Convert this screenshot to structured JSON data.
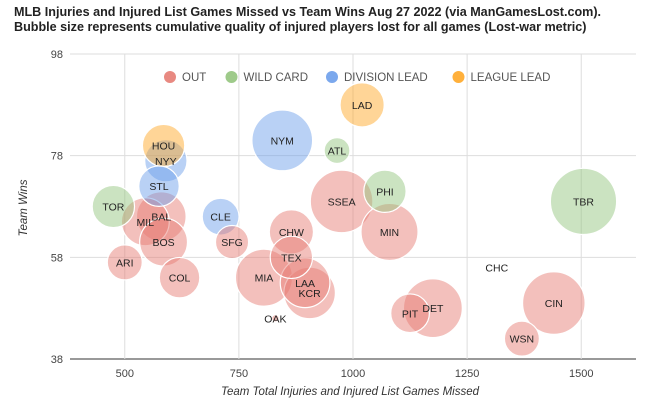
{
  "chart_data": {
    "type": "scatter",
    "title": "MLB Injuries and Injured List Games Missed vs Team Wins Aug 27 2022 (via ManGamesLost.com). Bubble size represents cumulative quality of injured players lost for all games (Lost-war metric)",
    "xlabel": "Team Total Injuries and Injured List Games Missed",
    "ylabel": "Team Wins",
    "xlim": [
      380,
      1620
    ],
    "ylim": [
      38,
      98
    ],
    "xticks": [
      500,
      750,
      1000,
      1250,
      1500
    ],
    "yticks": [
      38,
      58,
      78,
      98
    ],
    "grid": true,
    "legend": {
      "position": "top"
    },
    "size_scale": "bubble radius proportional to Lost-war (relative size)",
    "series": [
      {
        "name": "OUT",
        "color": "#e67c73",
        "points": [
          {
            "label": "MIL",
            "x": 545,
            "y": 65,
            "size": 2.6
          },
          {
            "label": "BAL",
            "x": 580,
            "y": 66,
            "size": 2.7
          },
          {
            "label": "BOS",
            "x": 585,
            "y": 61,
            "size": 2.6
          },
          {
            "label": "ARI",
            "x": 500,
            "y": 57,
            "size": 1.9
          },
          {
            "label": "COL",
            "x": 620,
            "y": 54,
            "size": 2.2
          },
          {
            "label": "SFG",
            "x": 735,
            "y": 61,
            "size": 1.8
          },
          {
            "label": "MIA",
            "x": 805,
            "y": 54,
            "size": 3.1
          },
          {
            "label": "OAK",
            "x": 830,
            "y": 46,
            "size": 0.4
          },
          {
            "label": "CHW",
            "x": 865,
            "y": 63,
            "size": 2.4
          },
          {
            "label": "TEX",
            "x": 865,
            "y": 58,
            "size": 2.3
          },
          {
            "label": "LAA",
            "x": 895,
            "y": 53,
            "size": 2.7
          },
          {
            "label": "KCR",
            "x": 905,
            "y": 51,
            "size": 2.8
          },
          {
            "label": "SSEA",
            "x": 975,
            "y": 69,
            "size": 3.4
          },
          {
            "label": "MIN",
            "x": 1080,
            "y": 63,
            "size": 3.1
          },
          {
            "label": "PIT",
            "x": 1125,
            "y": 47,
            "size": 2.1
          },
          {
            "label": "DET",
            "x": 1175,
            "y": 48,
            "size": 3.2
          },
          {
            "label": "CHC",
            "x": 1315,
            "y": 56,
            "size": 0.0
          },
          {
            "label": "CIN",
            "x": 1440,
            "y": 49,
            "size": 3.4
          },
          {
            "label": "WSN",
            "x": 1370,
            "y": 42,
            "size": 1.9
          }
        ]
      },
      {
        "name": "WILD CARD",
        "color": "#93c47d",
        "points": [
          {
            "label": "TOR",
            "x": 475,
            "y": 68,
            "size": 2.3
          },
          {
            "label": "ATL",
            "x": 965,
            "y": 79,
            "size": 1.4
          },
          {
            "label": "PHI",
            "x": 1070,
            "y": 71,
            "size": 2.3
          },
          {
            "label": "TBR",
            "x": 1505,
            "y": 69,
            "size": 3.6
          }
        ]
      },
      {
        "name": "DIVISION LEAD",
        "color": "#6d9eeb",
        "points": [
          {
            "label": "NYY",
            "x": 590,
            "y": 77,
            "size": 2.3
          },
          {
            "label": "STL",
            "x": 575,
            "y": 72,
            "size": 2.2
          },
          {
            "label": "CLE",
            "x": 710,
            "y": 66,
            "size": 2.0
          },
          {
            "label": "NYM",
            "x": 845,
            "y": 81,
            "size": 3.3
          }
        ]
      },
      {
        "name": "LEAGUE LEAD",
        "color": "#ffa726",
        "points": [
          {
            "label": "LAD",
            "x": 1020,
            "y": 88,
            "size": 2.4
          },
          {
            "label": "HOU",
            "x": 585,
            "y": 80,
            "size": 2.3
          }
        ]
      }
    ]
  }
}
